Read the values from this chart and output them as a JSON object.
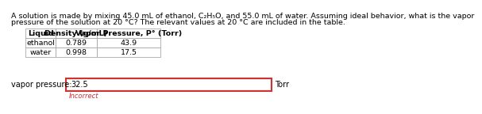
{
  "question_line1": "A solution is made by mixing 45.0 mL of ethanol, C₂H₅O, and 55.0 mL of water. Assuming ideal behavior, what is the vapor",
  "question_line2": "pressure of the solution at 20 °C? The relevant values at 20 °C are included in the table.",
  "table_headers": [
    "Liquid",
    "Density (g/mL)",
    "Vapor Pressure, P° (Torr)"
  ],
  "table_rows": [
    [
      "ethanol",
      "0.789",
      "43.9"
    ],
    [
      "water",
      "0.998",
      "17.5"
    ]
  ],
  "answer_label": "vapor pressure:",
  "answer_value": "32.5",
  "answer_unit": "Torr",
  "incorrect_text": "Incorrect",
  "bg_color": "#ffffff",
  "box_border_color": "#cc3333",
  "box_fill_color": "#f0f0f0",
  "text_color": "#000000",
  "incorrect_color": "#cc3333",
  "table_border_color": "#999999",
  "q_fontsize": 6.8,
  "table_fontsize": 6.8,
  "answer_fontsize": 7.0
}
